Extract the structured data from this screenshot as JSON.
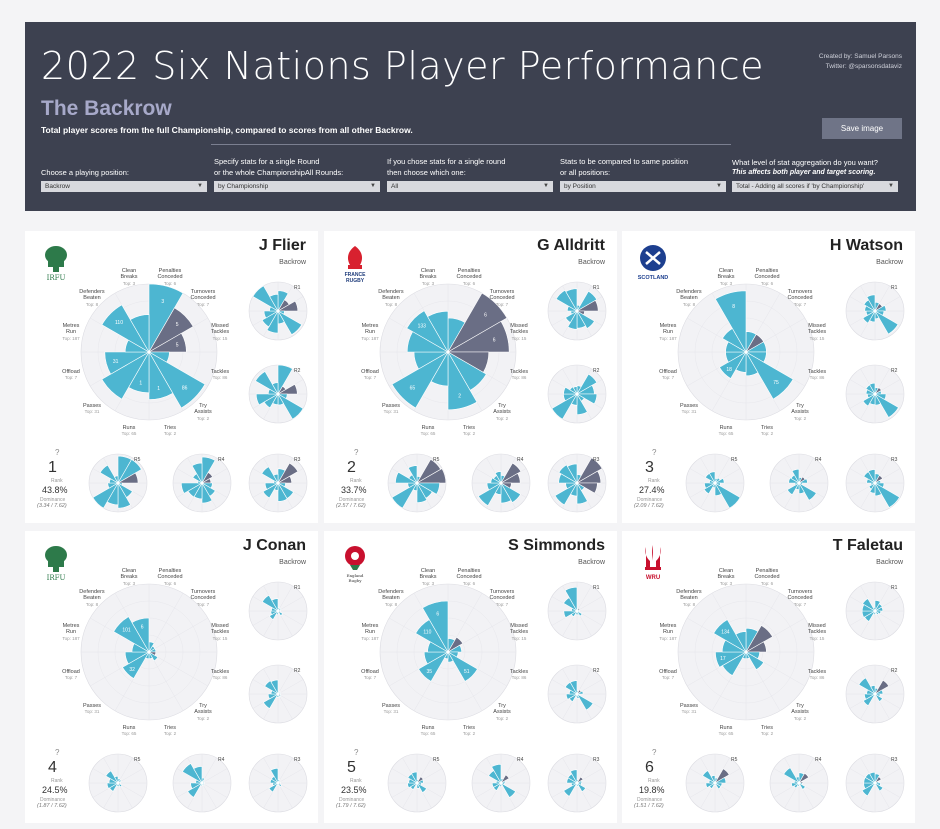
{
  "header": {
    "title": "2022 Six Nations Player Performance",
    "subtitle": "The Backrow",
    "description": "Total player scores from the full Championship, compared to scores from all other Backrow.",
    "credit_line1": "Created by: Samuel Parsons",
    "credit_line2": "Twitter: @sparsonsdataviz",
    "save_label": "Save image"
  },
  "filters": [
    {
      "label_line1": "",
      "label_line2": "Choose a playing position:",
      "note": "",
      "value": "Backrow"
    },
    {
      "label_line1": "Specify stats for a single Round",
      "label_line2": "or the whole ChampionshipAll Rounds:",
      "note": "",
      "value": "by Championship"
    },
    {
      "label_line1": "If you chose stats for a single round",
      "label_line2": "then choose which one:",
      "note": "",
      "value": "All"
    },
    {
      "label_line1": "Stats to be compared to same position",
      "label_line2": "or all positions:",
      "note": "",
      "value": "by Position"
    },
    {
      "label_line1": "What level of stat aggregation do you want?",
      "label_line2": "",
      "note": "This affects both player and target scoring.",
      "value": "Total - Adding all scores if 'by Championship'"
    }
  ],
  "stats": [
    {
      "name": "Clean Breaks",
      "top": "Top: 3"
    },
    {
      "name": "Penalties Conceded",
      "top": "Top: 6"
    },
    {
      "name": "Turnovers Conceded",
      "top": "Top: 7"
    },
    {
      "name": "Missed Tackles",
      "top": "Top: 15"
    },
    {
      "name": "Tackles",
      "top": "Top: 86"
    },
    {
      "name": "Try Assists",
      "top": "Top: 2"
    },
    {
      "name": "Tries",
      "top": "Top: 2"
    },
    {
      "name": "Runs",
      "top": "Top: 65"
    },
    {
      "name": "Passes",
      "top": "Top: 31"
    },
    {
      "name": "Offload",
      "top": "Top: 7"
    },
    {
      "name": "Metres Run",
      "top": "Top: 187"
    },
    {
      "name": "Defenders Beaten",
      "top": "Top: 8"
    }
  ],
  "rank_label": "Rank",
  "dominance_label": "Dominance",
  "rank_question": "?",
  "colors": {
    "positive": "#4db6d1",
    "negative": "#6a6e85",
    "ring": "#dcdce2",
    "fill": "#f2f2f5"
  },
  "players": [
    {
      "name": "J Flier",
      "position": "Backrow",
      "team": "ireland",
      "team_label": "IRFU",
      "rank": "1",
      "pct": "43.8%",
      "dominance": "(3.34 / 7.62)",
      "values": [
        1.0,
        0.75,
        0.55,
        0.3,
        0.95,
        0.7,
        0.6,
        0.8,
        0.65,
        0.35,
        0.8,
        0.55
      ],
      "neg": [
        0,
        1,
        1,
        0,
        0,
        0,
        0,
        0,
        0,
        0,
        0,
        0
      ],
      "data_labels": [
        "3",
        "5",
        "5",
        "",
        "86",
        "1",
        "1",
        "",
        "31",
        "",
        "110",
        ""
      ],
      "rounds": [
        "R1",
        "R2",
        "R3",
        "R4",
        "R5"
      ]
    },
    {
      "name": "G Alldritt",
      "position": "Backrow",
      "team": "france",
      "team_label": "FRANCE RUGBY",
      "rank": "2",
      "pct": "33.7%",
      "dominance": "(2.57 / 7.62)",
      "values": [
        0.5,
        1.0,
        0.9,
        0.6,
        0.65,
        0.85,
        0.5,
        0.95,
        0.5,
        0.6,
        0.7,
        0.6
      ],
      "neg": [
        0,
        1,
        1,
        1,
        0,
        0,
        0,
        0,
        0,
        0,
        0,
        0
      ],
      "data_labels": [
        "",
        "6",
        "6",
        "",
        "",
        "2",
        "",
        "65",
        "",
        "",
        "133",
        ""
      ],
      "rounds": [
        "R1",
        "R2",
        "R3",
        "R4",
        "R5"
      ]
    },
    {
      "name": "H Watson",
      "position": "Backrow",
      "team": "scotland",
      "team_label": "SCOTLAND",
      "rank": "3",
      "pct": "27.4%",
      "dominance": "(2.09 / 7.62)",
      "values": [
        0.3,
        0.3,
        0.3,
        0.3,
        0.8,
        0.35,
        0.3,
        0.45,
        0.3,
        0.3,
        0.4,
        0.9
      ],
      "neg": [
        0,
        1,
        0,
        0,
        0,
        0,
        0,
        0,
        0,
        0,
        0,
        0
      ],
      "data_labels": [
        "",
        "",
        "",
        "",
        "75",
        "",
        "",
        "18",
        "",
        "",
        "",
        "8"
      ],
      "rounds": [
        "R1",
        "R2",
        "R3",
        "R4",
        "R5"
      ]
    },
    {
      "name": "J Conan",
      "position": "Backrow",
      "team": "ireland",
      "team_label": "IRFU",
      "rank": "4",
      "pct": "24.5%",
      "dominance": "(1.87 / 7.62)",
      "values": [
        0.15,
        0.1,
        0.1,
        0.1,
        0.15,
        0.1,
        0.1,
        0.45,
        0.35,
        0.25,
        0.6,
        0.5
      ],
      "neg": [
        0,
        0,
        0,
        1,
        0,
        0,
        0,
        0,
        0,
        0,
        0,
        0
      ],
      "data_labels": [
        "",
        "",
        "",
        "",
        "",
        "",
        "",
        "32",
        "",
        "",
        "101",
        "6"
      ],
      "rounds": [
        "R1",
        "R2",
        "R3",
        "R4",
        "R5"
      ]
    },
    {
      "name": "S Simmonds",
      "position": "Backrow",
      "team": "england",
      "team_label": "England Rugby",
      "rank": "5",
      "pct": "23.5%",
      "dominance": "(1.79 / 7.62)",
      "values": [
        0.2,
        0.25,
        0.2,
        0.15,
        0.5,
        0.15,
        0.1,
        0.5,
        0.35,
        0.3,
        0.55,
        0.75
      ],
      "neg": [
        0,
        1,
        0,
        0,
        0,
        0,
        0,
        0,
        0,
        0,
        0,
        0
      ],
      "data_labels": [
        "",
        "",
        "",
        "",
        "51",
        "",
        "",
        "35",
        "",
        "",
        "110",
        "6"
      ],
      "rounds": [
        "R1",
        "R2",
        "R3",
        "R4",
        "R5"
      ]
    },
    {
      "name": "T Faletau",
      "position": "Backrow",
      "team": "wales",
      "team_label": "WRU",
      "rank": "6",
      "pct": "19.8%",
      "dominance": "(1.51 / 7.62)",
      "values": [
        0.35,
        0.45,
        0.3,
        0.2,
        0.3,
        0.1,
        0.1,
        0.4,
        0.45,
        0.35,
        0.55,
        0.3
      ],
      "neg": [
        0,
        1,
        1,
        0,
        0,
        0,
        0,
        0,
        0,
        0,
        0,
        0
      ],
      "data_labels": [
        "",
        "",
        "",
        "",
        "",
        "",
        "",
        "",
        "17",
        "",
        "134",
        ""
      ],
      "rounds": [
        "R1",
        "R2",
        "R3",
        "R4",
        "R5"
      ]
    }
  ]
}
